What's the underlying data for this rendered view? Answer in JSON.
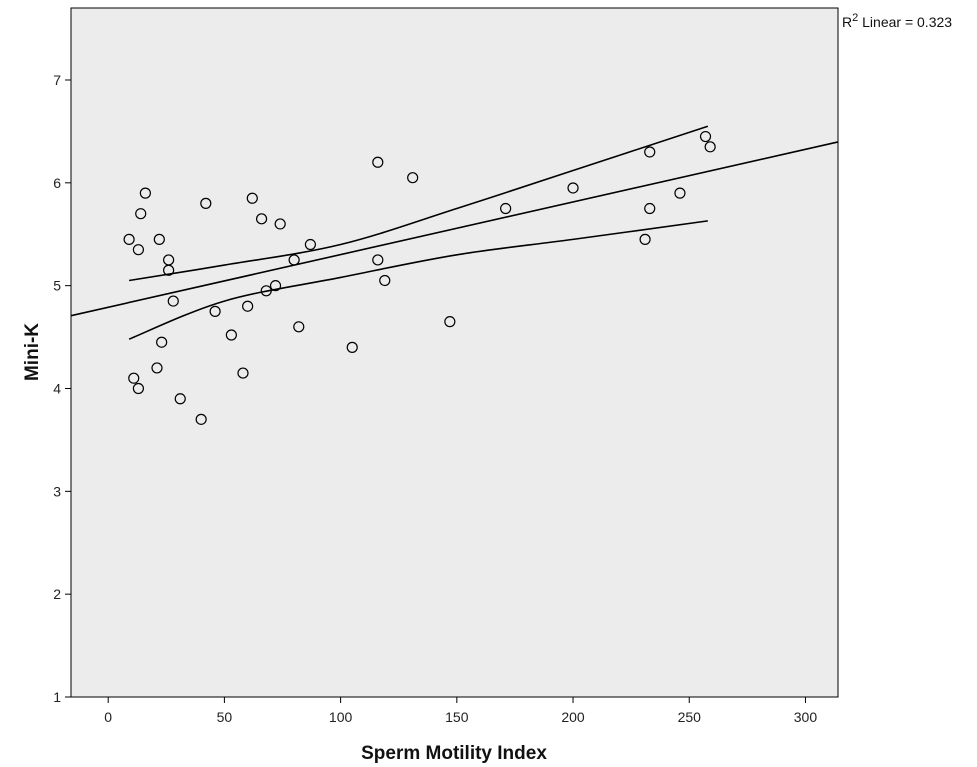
{
  "chart_data": {
    "type": "scatter",
    "title": "",
    "xlabel": "Sperm Motility Index",
    "ylabel": "Mini-K",
    "xlim": [
      -16,
      314
    ],
    "ylim": [
      1,
      7.7
    ],
    "x_ticks": [
      0,
      50,
      100,
      150,
      200,
      250,
      300
    ],
    "y_ticks": [
      1,
      2,
      3,
      4,
      5,
      6,
      7
    ],
    "grid": false,
    "legend": "none",
    "annotation": {
      "prefix": "R",
      "sup": "2",
      "suffix": " Linear = 0.323"
    },
    "colors": {
      "plot_bg": "#ececec",
      "marker_stroke": "#000000",
      "line": "#000000"
    },
    "points": [
      {
        "x": 9,
        "y": 5.45
      },
      {
        "x": 13,
        "y": 5.35
      },
      {
        "x": 14,
        "y": 5.7
      },
      {
        "x": 16,
        "y": 5.9
      },
      {
        "x": 11,
        "y": 4.1
      },
      {
        "x": 13,
        "y": 4.0
      },
      {
        "x": 22,
        "y": 5.45
      },
      {
        "x": 26,
        "y": 5.25
      },
      {
        "x": 26,
        "y": 5.15
      },
      {
        "x": 28,
        "y": 4.85
      },
      {
        "x": 23,
        "y": 4.45
      },
      {
        "x": 21,
        "y": 4.2
      },
      {
        "x": 31,
        "y": 3.9
      },
      {
        "x": 40,
        "y": 3.7
      },
      {
        "x": 42,
        "y": 5.8
      },
      {
        "x": 46,
        "y": 4.75
      },
      {
        "x": 53,
        "y": 4.52
      },
      {
        "x": 58,
        "y": 4.15
      },
      {
        "x": 60,
        "y": 4.8
      },
      {
        "x": 62,
        "y": 5.85
      },
      {
        "x": 66,
        "y": 5.65
      },
      {
        "x": 68,
        "y": 4.95
      },
      {
        "x": 72,
        "y": 5.0
      },
      {
        "x": 74,
        "y": 5.6
      },
      {
        "x": 80,
        "y": 5.25
      },
      {
        "x": 82,
        "y": 4.6
      },
      {
        "x": 87,
        "y": 5.4
      },
      {
        "x": 105,
        "y": 4.4
      },
      {
        "x": 116,
        "y": 6.2
      },
      {
        "x": 116,
        "y": 5.25
      },
      {
        "x": 119,
        "y": 5.05
      },
      {
        "x": 131,
        "y": 6.05
      },
      {
        "x": 147,
        "y": 4.65
      },
      {
        "x": 171,
        "y": 5.75
      },
      {
        "x": 200,
        "y": 5.95
      },
      {
        "x": 231,
        "y": 5.45
      },
      {
        "x": 233,
        "y": 6.3
      },
      {
        "x": 233,
        "y": 5.75
      },
      {
        "x": 246,
        "y": 5.9
      },
      {
        "x": 257,
        "y": 6.45
      },
      {
        "x": 259,
        "y": 6.35
      }
    ],
    "fit_line": {
      "intercept": 4.79,
      "slope": 0.00512,
      "x_range": [
        -16,
        314
      ]
    },
    "ci_upper": [
      [
        9,
        5.05
      ],
      [
        50,
        5.2
      ],
      [
        100,
        5.4
      ],
      [
        150,
        5.75
      ],
      [
        200,
        6.12
      ],
      [
        258,
        6.55
      ]
    ],
    "ci_lower": [
      [
        9,
        4.48
      ],
      [
        50,
        4.85
      ],
      [
        100,
        5.08
      ],
      [
        150,
        5.3
      ],
      [
        200,
        5.45
      ],
      [
        258,
        5.63
      ]
    ]
  }
}
